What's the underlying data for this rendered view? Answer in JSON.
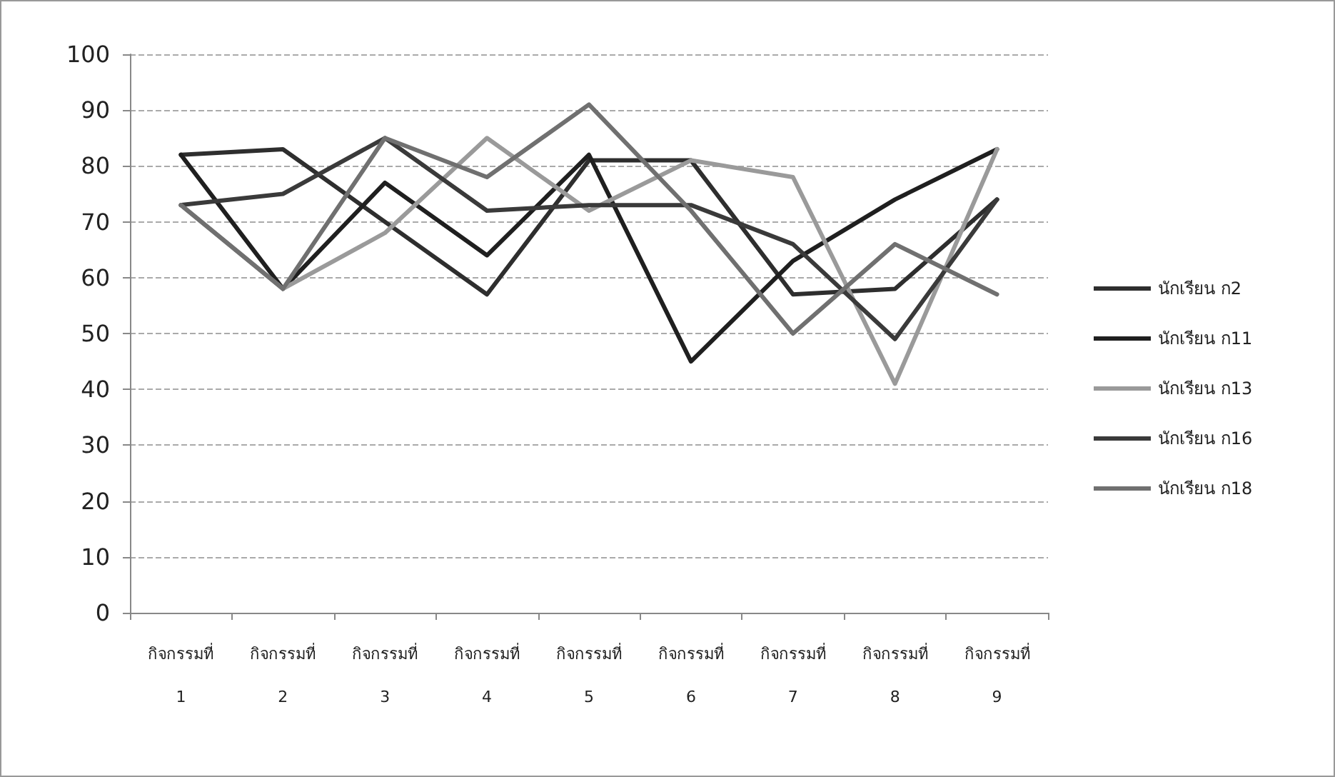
{
  "chart_data": {
    "type": "line",
    "categories": [
      "กิจกรรมที่ 1",
      "กิจกรรมที่ 2",
      "กิจกรรมที่ 3",
      "กิจกรรมที่ 4",
      "กิจกรรมที่ 5",
      "กิจกรรมที่ 6",
      "กิจกรรมที่ 7",
      "กิจกรรมที่ 8",
      "กิจกรรมที่ 9"
    ],
    "series": [
      {
        "name": "นักเรียน ก2",
        "color": "#2e2e2e",
        "values": [
          82,
          83,
          70,
          57,
          81,
          81,
          57,
          58,
          74
        ]
      },
      {
        "name": "นักเรียน ก11",
        "color": "#1f1f1f",
        "values": [
          82,
          58,
          77,
          64,
          82,
          45,
          63,
          74,
          83
        ]
      },
      {
        "name": "นักเรียน ก13",
        "color": "#9a9a9a",
        "values": [
          73,
          58,
          68,
          85,
          72,
          81,
          78,
          41,
          83
        ]
      },
      {
        "name": "นักเรียน ก16",
        "color": "#3a3a3a",
        "values": [
          73,
          75,
          85,
          72,
          73,
          73,
          66,
          49,
          74
        ]
      },
      {
        "name": "นักเรียน ก18",
        "color": "#707070",
        "values": [
          73,
          58,
          85,
          78,
          91,
          72,
          50,
          66,
          57
        ]
      }
    ],
    "ylim": [
      0,
      100
    ],
    "yticks": [
      0,
      10,
      20,
      30,
      40,
      50,
      60,
      70,
      80,
      90,
      100
    ],
    "grid": "y",
    "legend": "right",
    "marker": "none",
    "line_style": "solid"
  }
}
